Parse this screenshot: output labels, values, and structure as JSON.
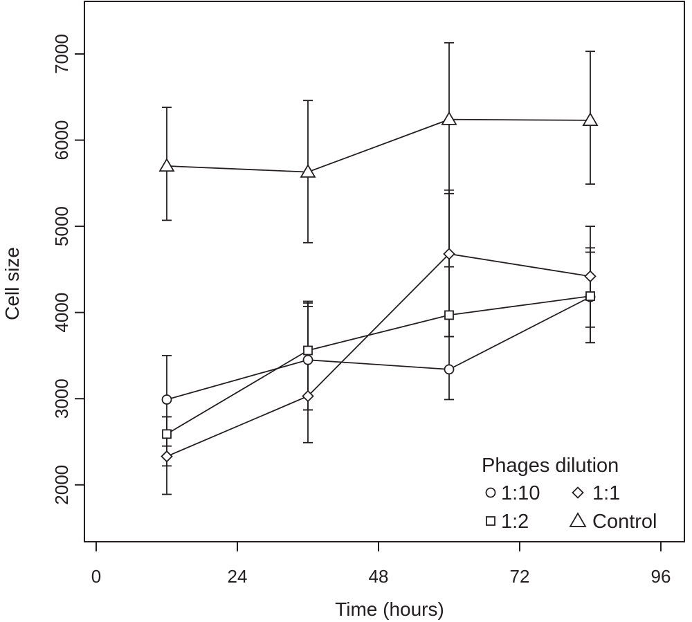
{
  "chart_data": {
    "type": "line",
    "xlabel": "Time (hours)",
    "ylabel": "Cell size",
    "xlim": [
      -2,
      100
    ],
    "ylim": [
      1340,
      7610
    ],
    "x_ticks": [
      0,
      24,
      48,
      72,
      96
    ],
    "x_tick_labels": [
      "0",
      "24",
      "48",
      "72",
      "96"
    ],
    "y_ticks": [
      2000,
      3000,
      4000,
      5000,
      6000,
      7000
    ],
    "y_tick_labels": [
      "2000",
      "3000",
      "4000",
      "5000",
      "6000",
      "7000"
    ],
    "x": [
      12,
      36,
      60,
      84
    ],
    "grid": false,
    "legend": {
      "title": "Phages dilution",
      "placement": "bottom-right",
      "entries": [
        {
          "label": "1:10",
          "marker": "circle"
        },
        {
          "label": "1:1",
          "marker": "diamond"
        },
        {
          "label": "1:2",
          "marker": "square"
        },
        {
          "label": "Control",
          "marker": "triangle"
        }
      ]
    },
    "series": [
      {
        "name": "1:10",
        "marker": "circle",
        "values": [
          2990,
          3450,
          3340,
          4180
        ],
        "error_low": [
          2450,
          2870,
          2990,
          3650
        ],
        "error_high": [
          3500,
          4070,
          3720,
          4700
        ]
      },
      {
        "name": "1:1",
        "marker": "diamond",
        "values": [
          2330,
          3030,
          4680,
          4420
        ],
        "error_low": [
          1890,
          2490,
          3720,
          3830
        ],
        "error_high": [
          2790,
          4130,
          5420,
          5000
        ]
      },
      {
        "name": "1:2",
        "marker": "square",
        "values": [
          2590,
          3560,
          3970,
          4190
        ],
        "error_low": [
          2220,
          2870,
          3720,
          3650
        ],
        "error_high": [
          2790,
          4110,
          5380,
          4750
        ]
      },
      {
        "name": "Control",
        "marker": "triangle",
        "values": [
          5700,
          5630,
          6240,
          6230
        ],
        "error_low": [
          5070,
          4810,
          4530,
          5490
        ],
        "error_high": [
          6380,
          6460,
          7130,
          7030
        ]
      }
    ]
  }
}
